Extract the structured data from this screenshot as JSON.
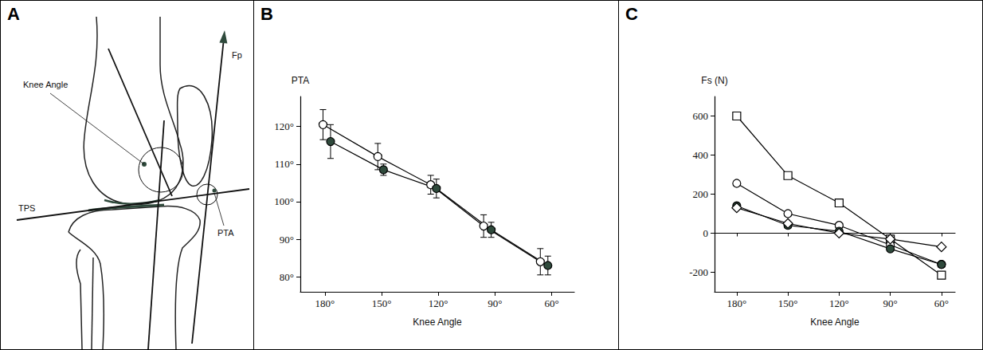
{
  "diagram": {
    "panel": "A",
    "labels": {
      "knee_angle": "Knee Angle",
      "tps": "TPS",
      "pta": "PTA",
      "fp": "Fp"
    }
  },
  "chart_data": [
    {
      "panel": "B",
      "type": "line",
      "x_label": "Knee Angle",
      "y_label": "PTA",
      "grid": false,
      "xlim": [
        193,
        48
      ],
      "xticks": [
        {
          "value": 180,
          "label": "180°"
        },
        {
          "value": 150,
          "label": "150°"
        },
        {
          "value": 120,
          "label": "120°"
        },
        {
          "value": 90,
          "label": "90°"
        },
        {
          "value": 60,
          "label": "60°"
        }
      ],
      "ylim": [
        76,
        128
      ],
      "yticks": [
        {
          "value": 80,
          "label": "80°"
        },
        {
          "value": 90,
          "label": "90°"
        },
        {
          "value": 100,
          "label": "100°"
        },
        {
          "value": 110,
          "label": "110°"
        },
        {
          "value": 120,
          "label": "120°"
        }
      ],
      "series": [
        {
          "color": "#ffffff",
          "marker": "circle",
          "x": [
            181,
            152,
            124,
            96,
            66
          ],
          "values": [
            120.5,
            112,
            104.5,
            93.5,
            84
          ],
          "errors": [
            4,
            3.5,
            2.5,
            3,
            3.5
          ]
        },
        {
          "color": "#2f4a3c",
          "marker": "circle",
          "x": [
            177,
            149,
            121,
            92,
            62
          ],
          "values": [
            116,
            108.5,
            103.5,
            92.5,
            83
          ],
          "errors": [
            4.5,
            1.5,
            2.5,
            2,
            2.5
          ]
        }
      ]
    },
    {
      "panel": "C",
      "type": "line",
      "x_label": "Knee Angle",
      "y_label": "Fs (N)",
      "grid": false,
      "xlim": [
        193,
        52
      ],
      "xticks": [
        {
          "value": 180,
          "label": "180°"
        },
        {
          "value": 150,
          "label": "150°"
        },
        {
          "value": 120,
          "label": "120°"
        },
        {
          "value": 90,
          "label": "90°"
        },
        {
          "value": 60,
          "label": "60°"
        }
      ],
      "ylim": [
        -300,
        700
      ],
      "yticks": [
        -200,
        0,
        200,
        400,
        600
      ],
      "series": [
        {
          "color": "#ffffff",
          "marker": "square",
          "x": [
            180,
            150,
            120,
            90,
            60
          ],
          "values": [
            600,
            295,
            155,
            -30,
            -215
          ]
        },
        {
          "color": "#ffffff",
          "marker": "circle",
          "x": [
            180,
            150,
            120,
            90,
            60
          ],
          "values": [
            255,
            100,
            40,
            -60,
            -160
          ]
        },
        {
          "color": "#2f4a3c",
          "marker": "circle",
          "x": [
            180,
            150,
            120,
            90,
            60
          ],
          "values": [
            140,
            40,
            10,
            -80,
            -160
          ]
        },
        {
          "color": "#ffffff",
          "marker": "diamond",
          "x": [
            180,
            150,
            120,
            90,
            60
          ],
          "values": [
            130,
            50,
            0,
            -30,
            -70
          ]
        }
      ]
    }
  ]
}
